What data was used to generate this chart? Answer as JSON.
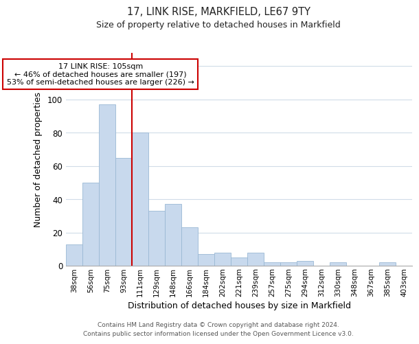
{
  "title1": "17, LINK RISE, MARKFIELD, LE67 9TY",
  "title2": "Size of property relative to detached houses in Markfield",
  "xlabel": "Distribution of detached houses by size in Markfield",
  "ylabel": "Number of detached properties",
  "bar_color": "#c8d9ed",
  "bar_edge_color": "#9ab8d4",
  "categories": [
    "38sqm",
    "56sqm",
    "75sqm",
    "93sqm",
    "111sqm",
    "129sqm",
    "148sqm",
    "166sqm",
    "184sqm",
    "202sqm",
    "221sqm",
    "239sqm",
    "257sqm",
    "275sqm",
    "294sqm",
    "312sqm",
    "330sqm",
    "348sqm",
    "367sqm",
    "385sqm",
    "403sqm"
  ],
  "values": [
    13,
    50,
    97,
    65,
    80,
    33,
    37,
    23,
    7,
    8,
    5,
    8,
    2,
    2,
    3,
    0,
    2,
    0,
    0,
    2,
    0
  ],
  "ylim": [
    0,
    128
  ],
  "yticks": [
    0,
    20,
    40,
    60,
    80,
    100,
    120
  ],
  "vline_x_idx": 4,
  "vline_color": "#cc0000",
  "annotation_text": "17 LINK RISE: 105sqm\n← 46% of detached houses are smaller (197)\n53% of semi-detached houses are larger (226) →",
  "annotation_box_color": "#ffffff",
  "annotation_box_edge": "#cc0000",
  "footer1": "Contains HM Land Registry data © Crown copyright and database right 2024.",
  "footer2": "Contains public sector information licensed under the Open Government Licence v3.0.",
  "background_color": "#ffffff",
  "grid_color": "#d0dce8"
}
